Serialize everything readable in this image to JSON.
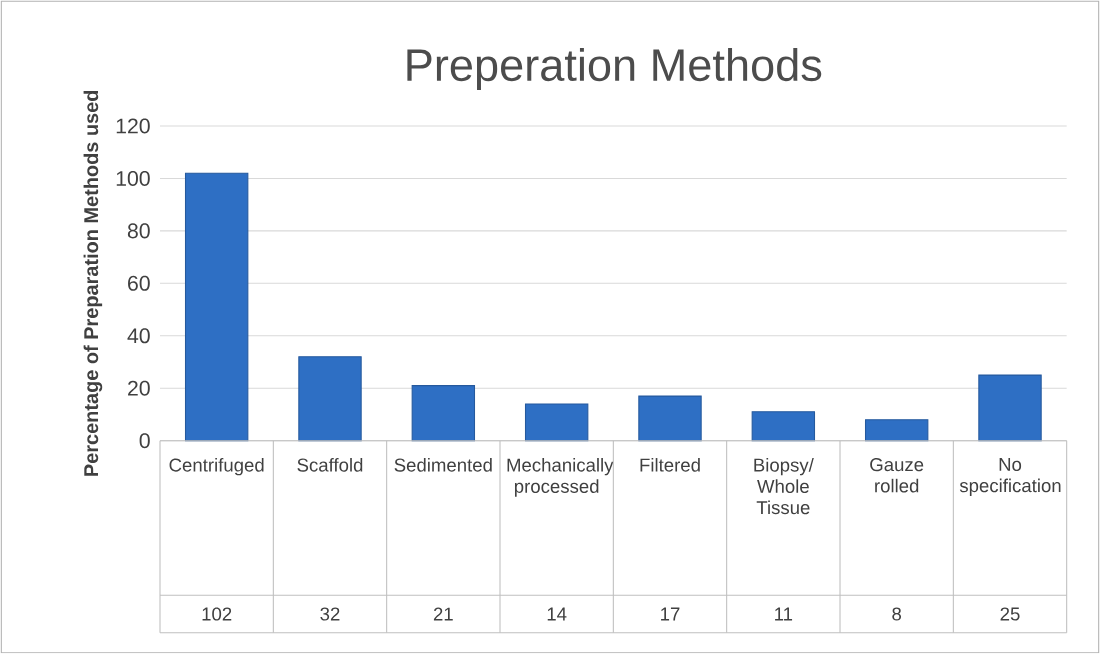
{
  "chart_data": {
    "type": "bar",
    "title": "Preperation Methods",
    "ylabel": "Percentage of Preparation Methods used",
    "categories": [
      "Centrifuged",
      "Scaffold",
      "Sedimented",
      "Mechanically processed",
      "Filtered",
      "Biopsy/ Whole Tissue",
      "Gauze rolled",
      "No specification"
    ],
    "values": [
      102,
      32,
      21,
      14,
      17,
      11,
      8,
      25
    ],
    "color": "#2e6fc4",
    "ylim": [
      0,
      120
    ],
    "yticks": [
      0,
      20,
      40,
      60,
      80,
      100,
      120
    ],
    "grid": "y",
    "data_labels": true
  }
}
